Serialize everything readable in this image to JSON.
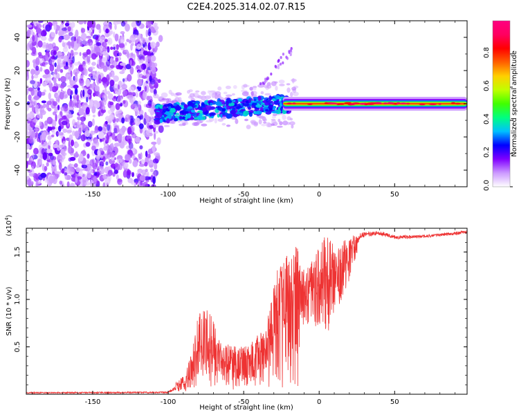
{
  "title": "C2E4.2025.314.02.07.R15",
  "chart_data": [
    {
      "type": "heatmap",
      "title": "C2E4.2025.314.02.07.R15",
      "xlabel": "Height of straight line (km)",
      "ylabel": "Frequency (Hz)",
      "xlim": [
        -194,
        98
      ],
      "ylim": [
        -50,
        50
      ],
      "xticks": [
        -150,
        -100,
        -50,
        0,
        50
      ],
      "yticks": [
        -40,
        -20,
        0,
        20,
        40
      ],
      "colorbar": {
        "label": "Normalized spectral amplitude",
        "range": [
          0,
          1
        ],
        "ticks": [
          0.0,
          0.2,
          0.4,
          0.6,
          0.8
        ],
        "colors": [
          "#ffffff",
          "#cc99ff",
          "#8000ff",
          "#0000ff",
          "#00c0ff",
          "#00ff80",
          "#40ff00",
          "#c0ff00",
          "#ffd000",
          "#ff6000",
          "#ff0000",
          "#ff0060",
          "#ff0080"
        ]
      },
      "regions": [
        {
          "name": "noise",
          "x": [
            -194,
            -108
          ],
          "freq": [
            -50,
            50
          ],
          "amplitude": 0.15
        },
        {
          "name": "transition",
          "x": [
            -108,
            -20
          ],
          "freq": [
            -12,
            25
          ],
          "amplitude": 0.3
        },
        {
          "name": "tone",
          "x": [
            -20,
            98
          ],
          "freq": [
            -1,
            1
          ],
          "amplitude": 0.8
        }
      ]
    },
    {
      "type": "line",
      "xlabel": "Height of straight line (km)",
      "ylabel": "SNR (10 * v/v)",
      "y_multiplier": "(x10^4)",
      "xlim": [
        -194,
        98
      ],
      "ylim": [
        0,
        1.75
      ],
      "xticks": [
        -150,
        -100,
        -50,
        0,
        50
      ],
      "yticks": [
        0.5,
        1.0,
        1.5
      ],
      "series": [
        {
          "name": "SNR",
          "color": "#ee3333",
          "envelope": [
            {
              "x": -194,
              "low": 0.0,
              "high": 0.03
            },
            {
              "x": -100,
              "low": 0.0,
              "high": 0.04
            },
            {
              "x": -90,
              "low": 0.02,
              "high": 0.2
            },
            {
              "x": -85,
              "low": 0.05,
              "high": 0.4
            },
            {
              "x": -80,
              "low": 0.05,
              "high": 0.85
            },
            {
              "x": -75,
              "low": 0.05,
              "high": 0.92
            },
            {
              "x": -70,
              "low": 0.05,
              "high": 0.8
            },
            {
              "x": -65,
              "low": 0.05,
              "high": 0.55
            },
            {
              "x": -55,
              "low": 0.05,
              "high": 0.5
            },
            {
              "x": -45,
              "low": 0.05,
              "high": 0.55
            },
            {
              "x": -35,
              "low": 0.05,
              "high": 0.75
            },
            {
              "x": -28,
              "low": 0.05,
              "high": 1.3
            },
            {
              "x": -20,
              "low": 0.05,
              "high": 1.62
            },
            {
              "x": -14,
              "low": 0.05,
              "high": 1.55
            },
            {
              "x": -12,
              "low": 0.7,
              "high": 1.3
            },
            {
              "x": -5,
              "low": 0.7,
              "high": 1.4
            },
            {
              "x": 5,
              "low": 0.6,
              "high": 1.7
            },
            {
              "x": 10,
              "low": 0.8,
              "high": 1.6
            },
            {
              "x": 20,
              "low": 1.2,
              "high": 1.65
            },
            {
              "x": 28,
              "low": 1.6,
              "high": 1.75
            },
            {
              "x": 40,
              "low": 1.64,
              "high": 1.75
            },
            {
              "x": 50,
              "low": 1.6,
              "high": 1.7
            },
            {
              "x": 70,
              "low": 1.62,
              "high": 1.7
            },
            {
              "x": 98,
              "low": 1.66,
              "high": 1.75
            }
          ]
        }
      ]
    }
  ]
}
